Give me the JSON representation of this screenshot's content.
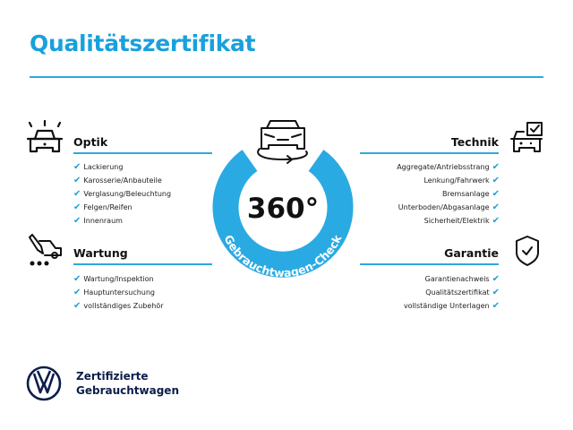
{
  "title": "Qualitätszertifikat",
  "badge": {
    "value": "360°",
    "ring_text": "Gebrauchtwagen-Check",
    "color": "#2aaae2"
  },
  "sections": {
    "optik": {
      "title": "Optik",
      "icon": "car-lights-icon",
      "items": [
        "Lackierung",
        "Karosserie/Anbauteile",
        "Verglasung/Beleuchtung",
        "Felgen/Reifen",
        "Innenraum"
      ]
    },
    "wartung": {
      "title": "Wartung",
      "icon": "service-tools-icon",
      "items": [
        "Wartung/Inspektion",
        "Hauptuntersuchung",
        "vollständiges Zubehör"
      ]
    },
    "technik": {
      "title": "Technik",
      "icon": "car-checklist-icon",
      "items": [
        "Aggregate/Antriebsstrang",
        "Lenkung/Fahrwerk",
        "Bremsanlage",
        "Unterboden/Abgasanlage",
        "Sicherheit/Elektrik"
      ]
    },
    "garantie": {
      "title": "Garantie",
      "icon": "shield-check-icon",
      "items": [
        "Garantienachweis",
        "Qualitätszertifikat",
        "vollständige Unterlagen"
      ]
    }
  },
  "check_glyph": "✔",
  "brand": {
    "line1": "Zertifizierte",
    "line2": "Gebrauchtwagen",
    "logo": "VW",
    "color": "#0c1e4a"
  },
  "accent": "#1aa0dc"
}
